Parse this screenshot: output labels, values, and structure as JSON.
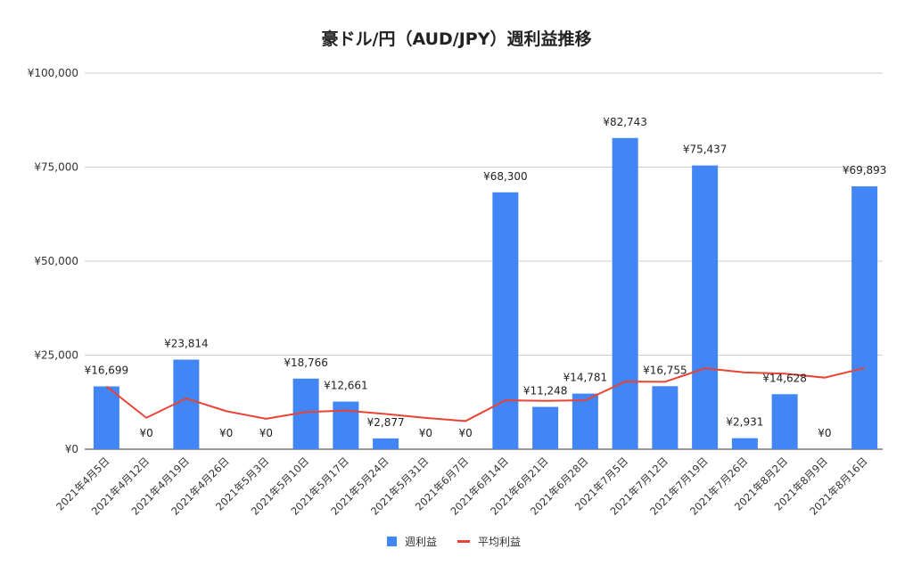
{
  "chart_data": {
    "type": "bar+line",
    "title": "豪ドル/円（AUD/JPY）週利益推移",
    "xlabel": "",
    "ylabel": "",
    "ylim": [
      0,
      100000
    ],
    "yticks": [
      0,
      25000,
      50000,
      75000,
      100000
    ],
    "ytick_labels": [
      "¥0",
      "¥25,000",
      "¥50,000",
      "¥75,000",
      "¥100,000"
    ],
    "grid": true,
    "legend": "bottom",
    "categories": [
      "2021年4月5日",
      "2021年4月12日",
      "2021年4月19日",
      "2021年4月26日",
      "2021年5月3日",
      "2021年5月10日",
      "2021年5月17日",
      "2021年5月24日",
      "2021年5月31日",
      "2021年6月7日",
      "2021年6月14日",
      "2021年6月21日",
      "2021年6月28日",
      "2021年7月5日",
      "2021年7月12日",
      "2021年7月19日",
      "2021年7月26日",
      "2021年8月2日",
      "2021年8月9日",
      "2021年8月16日"
    ],
    "series": [
      {
        "name": "週利益",
        "type": "bar",
        "color": "#4285f4",
        "values": [
          16699,
          0,
          23814,
          0,
          0,
          18766,
          12661,
          2877,
          0,
          0,
          68300,
          11248,
          14781,
          82743,
          16755,
          75437,
          2931,
          14628,
          0,
          69893
        ],
        "labels": [
          "¥16,699",
          "¥0",
          "¥23,814",
          "¥0",
          "¥0",
          "¥18,766",
          "¥12,661",
          "¥2,877",
          "¥0",
          "¥0",
          "¥68,300",
          "¥11,248",
          "¥14,781",
          "¥82,743",
          "¥16,755",
          "¥75,437",
          "¥2,931",
          "¥14,628",
          "¥0",
          "¥69,893"
        ]
      },
      {
        "name": "平均利益",
        "type": "line",
        "color": "#ea4335",
        "values": [
          16699,
          8350,
          13504,
          10128,
          8103,
          9880,
          10277,
          9352,
          8313,
          7482,
          13011,
          12864,
          13011,
          17992,
          17910,
          21505,
          20412,
          20091,
          19034,
          21577
        ]
      }
    ]
  }
}
